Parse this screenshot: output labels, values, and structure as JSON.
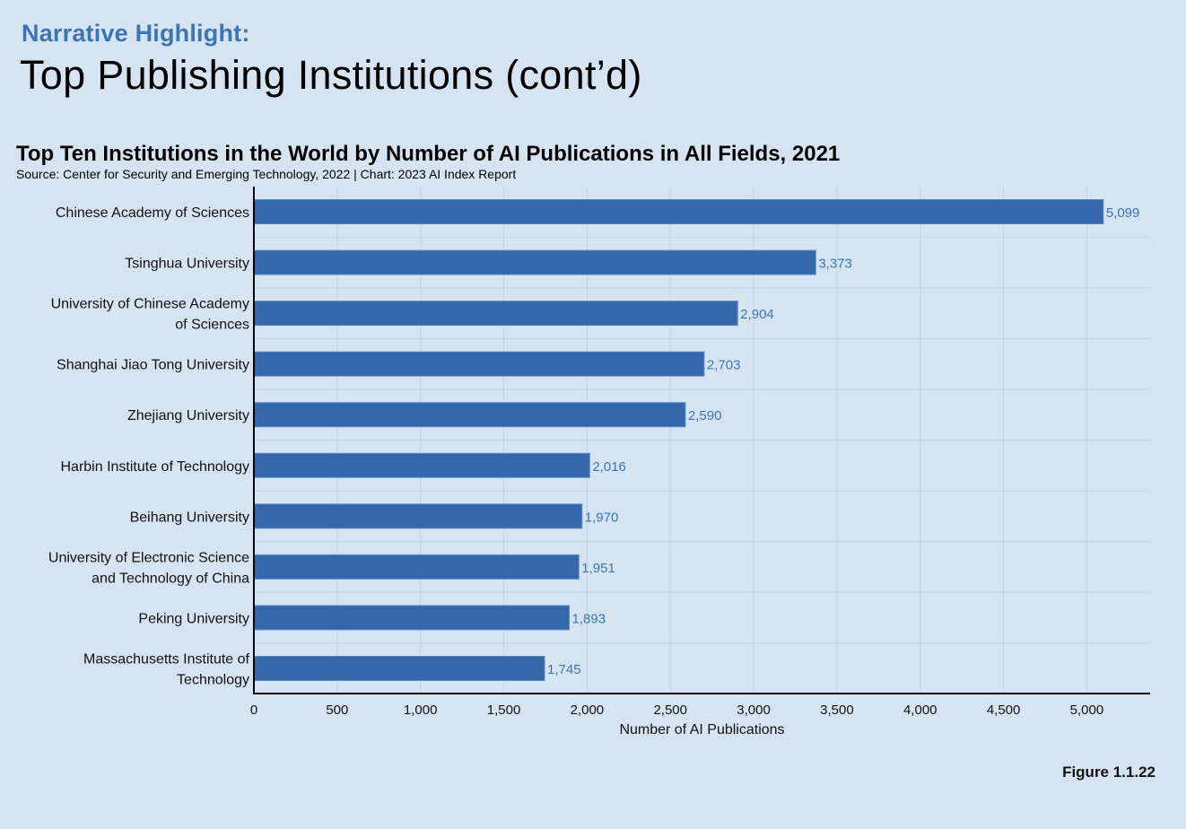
{
  "header": {
    "kicker": "Narrative Highlight:",
    "headline": "Top Publishing Institutions (cont’d)"
  },
  "chart_data": {
    "type": "bar",
    "orientation": "horizontal",
    "title": "Top Ten Institutions in the World by Number of AI Publications in All Fields, 2021",
    "source": "Source: Center for Security and Emerging Technology, 2022 | Chart: 2023 AI Index Report",
    "categories": [
      [
        "Chinese Academy of Sciences"
      ],
      [
        "Tsinghua University"
      ],
      [
        "University of Chinese Academy",
        "of Sciences"
      ],
      [
        "Shanghai Jiao Tong University"
      ],
      [
        "Zhejiang University"
      ],
      [
        "Harbin Institute of Technology"
      ],
      [
        "Beihang University"
      ],
      [
        "University of Electronic Science",
        "and Technology of China"
      ],
      [
        "Peking University"
      ],
      [
        "Massachusetts Institute of",
        "Technology"
      ]
    ],
    "values": [
      5099,
      3373,
      2904,
      2703,
      2590,
      2016,
      1970,
      1951,
      1893,
      1745
    ],
    "value_labels": [
      "5,099",
      "3,373",
      "2,904",
      "2,703",
      "2,590",
      "2,016",
      "1,970",
      "1,951",
      "1,893",
      "1,745"
    ],
    "xlabel": "Number of AI Publications",
    "xticks": [
      0,
      500,
      1000,
      1500,
      2000,
      2500,
      3000,
      3500,
      4000,
      4500,
      5000
    ],
    "xtick_labels": [
      "0",
      "500",
      "1,000",
      "1,500",
      "2,000",
      "2,500",
      "3,000",
      "3,500",
      "4,000",
      "4,500",
      "5,000"
    ],
    "xlim": [
      0,
      5380
    ],
    "grid": true,
    "bar_color": "#3567ab",
    "value_label_color": "#3a76b6"
  },
  "footer": {
    "figure_label": "Figure 1.1.22"
  }
}
